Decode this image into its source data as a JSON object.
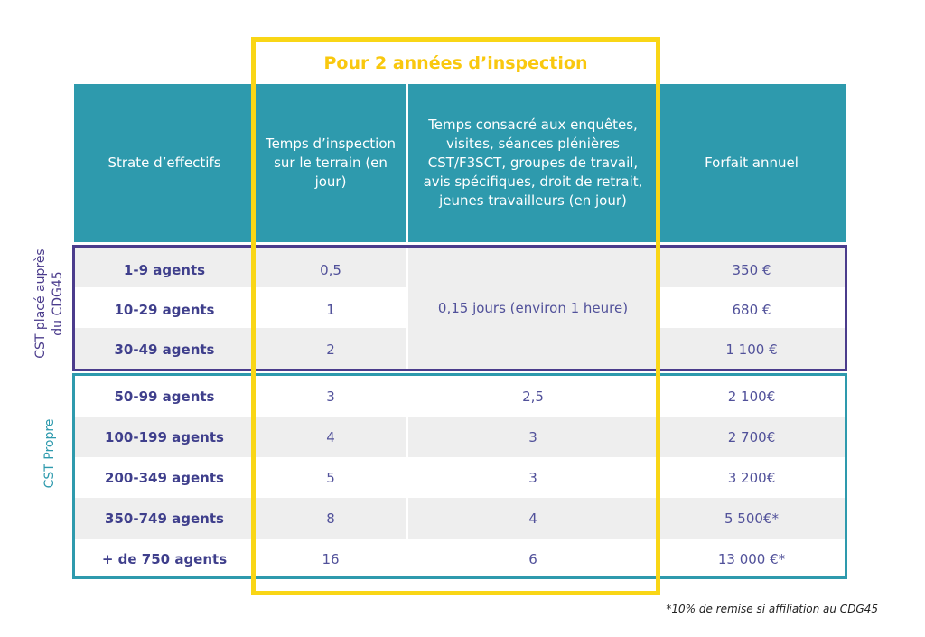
{
  "title": "Pour 2 années d’inspection",
  "headers": {
    "strate": "Strate d’effectifs",
    "temps_terrain": "Temps d’inspection sur le terrain (en jour)",
    "temps_consacre": "Temps consacré aux enquêtes, visites, séances plénières CST/F3SCT, groupes de travail, avis spécifiques, droit de retrait, jeunes travailleurs (en jour)",
    "forfait": "Forfait annuel"
  },
  "groups": {
    "g1_label": "CST placé auprès du CDG45",
    "g2_label": "CST Propre",
    "g1_merged": "0,15 jours (environ 1 heure)"
  },
  "rows": [
    {
      "strate": "1-9 agents",
      "terrain": "0,5",
      "consacre": "",
      "forfait": "350 €"
    },
    {
      "strate": "10-29 agents",
      "terrain": "1",
      "consacre": "",
      "forfait": "680 €"
    },
    {
      "strate": "30-49 agents",
      "terrain": "2",
      "consacre": "",
      "forfait": "1 100 €"
    },
    {
      "strate": "50-99 agents",
      "terrain": "3",
      "consacre": "2,5",
      "forfait": "2 100€"
    },
    {
      "strate": "100-199 agents",
      "terrain": "4",
      "consacre": "3",
      "forfait": "2 700€"
    },
    {
      "strate": "200-349 agents",
      "terrain": "5",
      "consacre": "3",
      "forfait": "3 200€"
    },
    {
      "strate": "350-749 agents",
      "terrain": "8",
      "consacre": "4",
      "forfait": "5 500€*"
    },
    {
      "strate": "+ de 750 agents",
      "terrain": "16",
      "consacre": "6",
      "forfait": "13 000 €*"
    }
  ],
  "footnote": "*10% de remise si affiliation au CDG45",
  "colors": {
    "header_teal": "#2e9aad",
    "group1_border": "#4b3c8c",
    "group2_border": "#2e9aad",
    "highlight_yellow": "#f9d616"
  }
}
